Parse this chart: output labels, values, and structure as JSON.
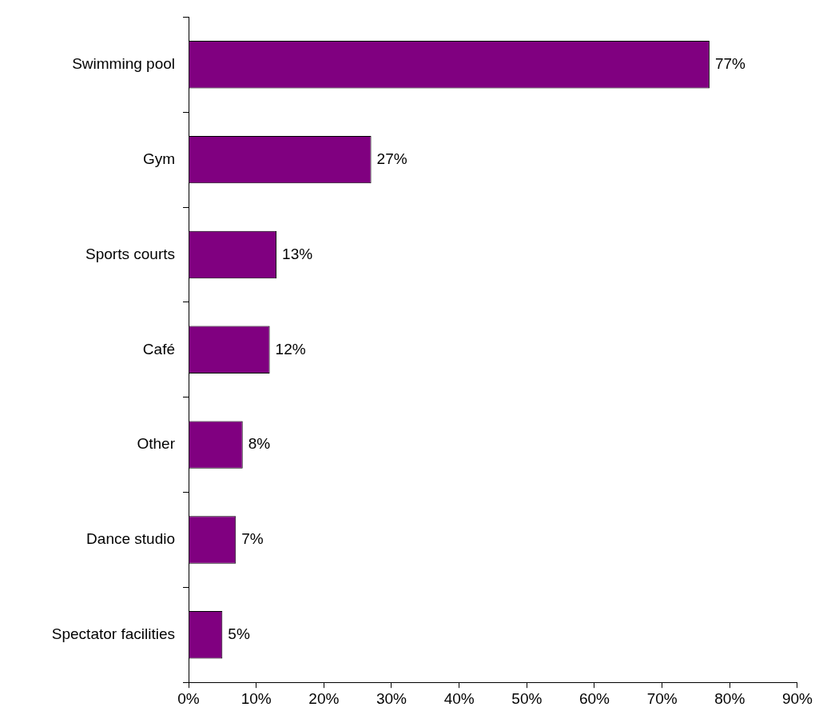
{
  "chart_data": {
    "type": "bar",
    "orientation": "horizontal",
    "categories": [
      "Swimming pool",
      "Gym",
      "Sports courts",
      "Café",
      "Other",
      "Dance studio",
      "Spectator facilities"
    ],
    "values": [
      77,
      27,
      13,
      12,
      8,
      7,
      5
    ],
    "value_labels": [
      "77%",
      "27%",
      "13%",
      "12%",
      "8%",
      "7%",
      "5%"
    ],
    "color": "#800080",
    "xlim": [
      0,
      90
    ],
    "xticks": [
      {
        "value": 0,
        "label": "0%"
      },
      {
        "value": 10,
        "label": "10%"
      },
      {
        "value": 20,
        "label": "20%"
      },
      {
        "value": 30,
        "label": "30%"
      },
      {
        "value": 40,
        "label": "40%"
      },
      {
        "value": 50,
        "label": "50%"
      },
      {
        "value": 60,
        "label": "60%"
      },
      {
        "value": 70,
        "label": "70%"
      },
      {
        "value": 80,
        "label": "80%"
      },
      {
        "value": 90,
        "label": "90%"
      }
    ],
    "legend": false
  }
}
